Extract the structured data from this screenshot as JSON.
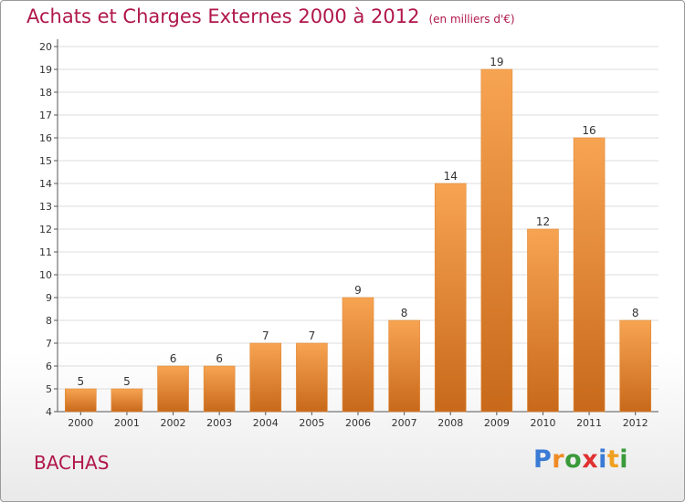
{
  "title": "Achats et Charges Externes 2000 à 2012",
  "unit": "(en milliers d'€)",
  "commune": "BACHAS",
  "logo": {
    "text": "Proxiti",
    "colors": [
      "#3a7bd5",
      "#f08a24",
      "#3a9a3a",
      "#e03030",
      "#3a7bd5",
      "#f0a020",
      "#3a9a3a"
    ]
  },
  "colors": {
    "title": "#b0174a",
    "bar_top": "#f7a452",
    "bar_bottom": "#c8691a",
    "grid": "#dcdcdc"
  },
  "chart_data": {
    "type": "bar",
    "categories": [
      "2000",
      "2001",
      "2002",
      "2003",
      "2004",
      "2005",
      "2006",
      "2007",
      "2008",
      "2009",
      "2010",
      "2011",
      "2012"
    ],
    "values": [
      5,
      5,
      6,
      6,
      7,
      7,
      9,
      8,
      14,
      19,
      12,
      16,
      8
    ],
    "ylim": [
      4,
      20
    ],
    "yticks": [
      4,
      5,
      6,
      7,
      8,
      9,
      10,
      11,
      12,
      13,
      14,
      15,
      16,
      17,
      18,
      19,
      20
    ],
    "grid": true,
    "legend": "none"
  }
}
